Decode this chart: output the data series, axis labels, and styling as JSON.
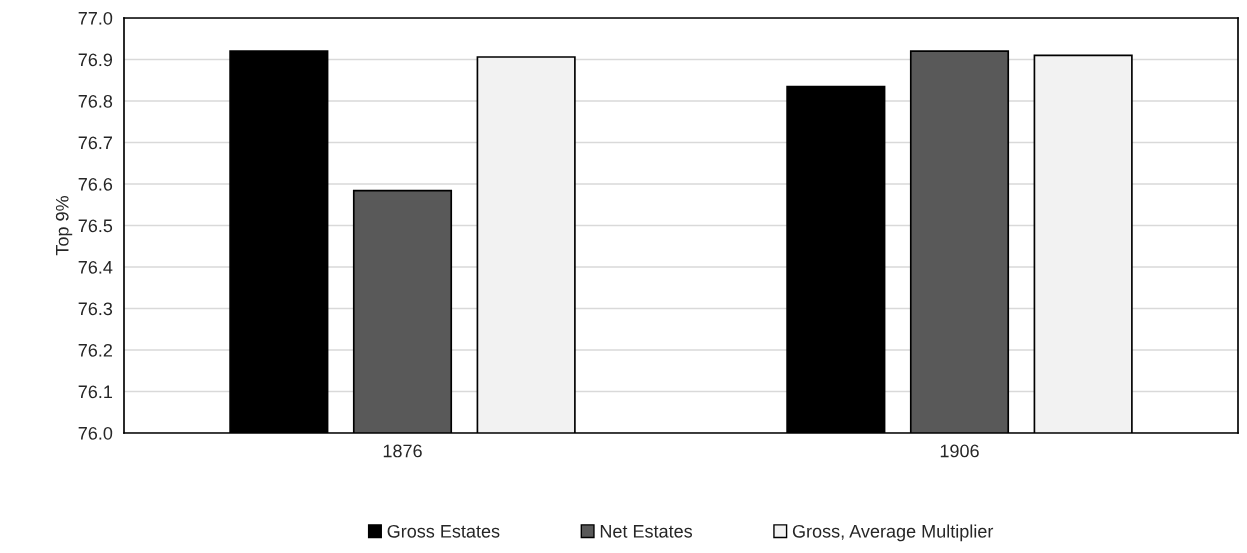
{
  "chart_data": {
    "type": "bar",
    "ylabel": "Top 9%",
    "categories": [
      "1876",
      "1906"
    ],
    "series": [
      {
        "name": "Gross Estates",
        "color": "#000000",
        "values": [
          76.92,
          76.835
        ]
      },
      {
        "name": "Net Estates",
        "color": "#595959",
        "values": [
          76.584,
          76.92
        ]
      },
      {
        "name": "Gross, Average Multiplier",
        "color": "#f2f2f2",
        "values": [
          76.906,
          76.91
        ]
      }
    ],
    "ylim": [
      76.0,
      77.0
    ],
    "yticks": [
      {
        "value": 76.0,
        "label": "76.0"
      },
      {
        "value": 76.1,
        "label": "76.1"
      },
      {
        "value": 76.2,
        "label": "76.2"
      },
      {
        "value": 76.3,
        "label": "76.3"
      },
      {
        "value": 76.4,
        "label": "76.4"
      },
      {
        "value": 76.5,
        "label": "76.5"
      },
      {
        "value": 76.6,
        "label": "76.6"
      },
      {
        "value": 76.7,
        "label": "76.7"
      },
      {
        "value": 76.8,
        "label": "76.8"
      },
      {
        "value": 76.9,
        "label": "76.9"
      },
      {
        "value": 77.0,
        "label": "77.0"
      }
    ],
    "grid": "y",
    "legend": "bottom"
  }
}
